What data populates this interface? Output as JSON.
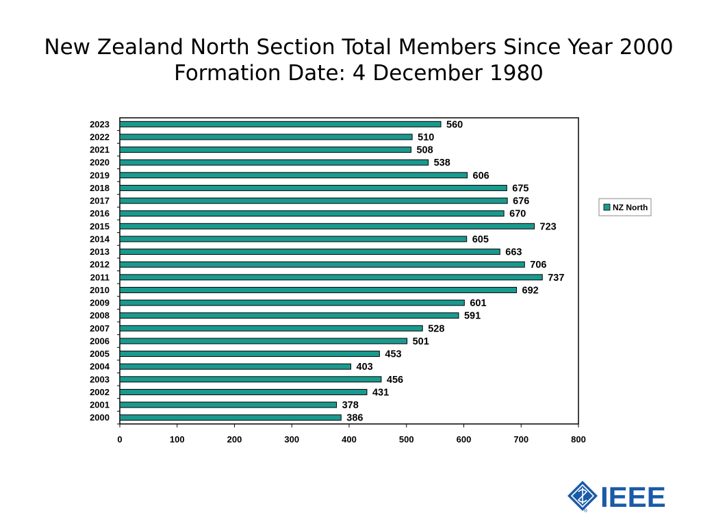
{
  "slide": {
    "title_line1": "New Zealand North Section Total Members Since Year 2000",
    "title_line2": "Formation Date: 4 December 1980"
  },
  "logo": {
    "text": "IEEE",
    "registered": "®",
    "color": "#1a5aa8"
  },
  "chart_data": {
    "type": "bar",
    "orientation": "horizontal",
    "categories": [
      "2000",
      "2001",
      "2002",
      "2003",
      "2004",
      "2005",
      "2006",
      "2007",
      "2008",
      "2009",
      "2010",
      "2011",
      "2012",
      "2013",
      "2014",
      "2015",
      "2016",
      "2017",
      "2018",
      "2019",
      "2020",
      "2021",
      "2022",
      "2023"
    ],
    "series": [
      {
        "name": "NZ North",
        "color": "#1a9a8e",
        "values": [
          386,
          378,
          431,
          456,
          403,
          453,
          501,
          528,
          591,
          601,
          692,
          737,
          706,
          663,
          605,
          723,
          670,
          676,
          675,
          606,
          538,
          508,
          510,
          560
        ]
      }
    ],
    "xlim": [
      0,
      800
    ],
    "xticks": [
      0,
      100,
      200,
      300,
      400,
      500,
      600,
      700,
      800
    ],
    "grid": false,
    "legend": "right",
    "data_labels": true
  }
}
